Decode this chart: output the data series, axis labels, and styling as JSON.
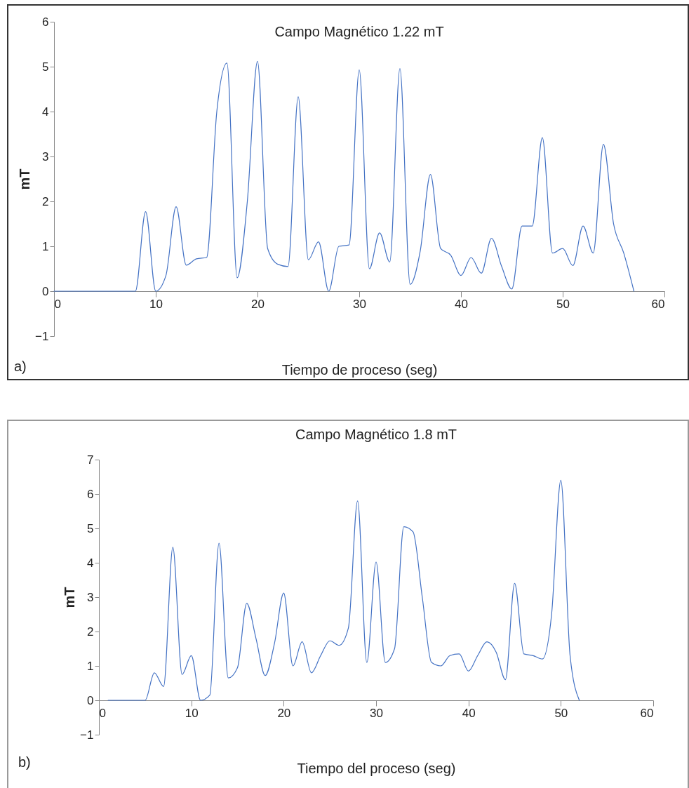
{
  "chart_data": [
    {
      "type": "line",
      "title": "Campo Magnético 1.22 mT",
      "xlabel": "Tiempo de proceso (seg)",
      "ylabel": "mT",
      "xlim": [
        0,
        60
      ],
      "xticks": [
        0,
        10,
        20,
        30,
        40,
        50,
        60
      ],
      "ylim": [
        -1,
        6
      ],
      "yticks": [
        -1,
        0,
        1,
        2,
        3,
        4,
        5,
        6
      ],
      "annotations": [
        "a)"
      ],
      "x": [
        0,
        1,
        2,
        3,
        4,
        5,
        6,
        7,
        8,
        9,
        10,
        11,
        12,
        13,
        14,
        15,
        16,
        17,
        18,
        19,
        20,
        21,
        22,
        23,
        24,
        25,
        26,
        27,
        28,
        29,
        30,
        31,
        32,
        33,
        34,
        35,
        36,
        37,
        38,
        39,
        40,
        41,
        42,
        43,
        44,
        45,
        46,
        47,
        48,
        49,
        50,
        51,
        52,
        53,
        54,
        55,
        56,
        57
      ],
      "series": [
        {
          "color": "#4472c4",
          "values": [
            0,
            0,
            0,
            0,
            0,
            0,
            0,
            0,
            0,
            1.77,
            0,
            0.35,
            1.88,
            0.58,
            0.72,
            0.75,
            4.0,
            5.08,
            0.3,
            2.0,
            5.12,
            0.95,
            0.6,
            0.55,
            4.33,
            0.7,
            1.1,
            0,
            1.0,
            1.03,
            4.93,
            0.5,
            1.3,
            0.65,
            4.96,
            0.15,
            0.9,
            2.6,
            0.95,
            0.8,
            0.35,
            0.75,
            0.4,
            1.18,
            0.55,
            0.05,
            1.45,
            1.45,
            3.42,
            0.85,
            0.95,
            0.57,
            1.45,
            0.85,
            3.27,
            1.5,
            0.85,
            0
          ]
        }
      ]
    },
    {
      "type": "line",
      "title": "Campo Magnético 1.8 mT",
      "xlabel": "Tiempo del proceso (seg)",
      "ylabel": "mT",
      "xlim": [
        0,
        60
      ],
      "xticks": [
        0,
        10,
        20,
        30,
        40,
        50,
        60
      ],
      "ylim": [
        -1,
        7
      ],
      "yticks": [
        -1,
        0,
        1,
        2,
        3,
        4,
        5,
        6,
        7
      ],
      "annotations": [
        "b)"
      ],
      "x": [
        1,
        2,
        3,
        4,
        5,
        6,
        7,
        8,
        9,
        10,
        11,
        12,
        13,
        14,
        15,
        16,
        17,
        18,
        19,
        20,
        21,
        22,
        23,
        24,
        25,
        26,
        27,
        28,
        29,
        30,
        31,
        32,
        33,
        34,
        35,
        36,
        37,
        38,
        39,
        40,
        41,
        42,
        43,
        44,
        45,
        46,
        47,
        48,
        49,
        50,
        51,
        52
      ],
      "series": [
        {
          "color": "#4472c4",
          "values": [
            0,
            0,
            0,
            0,
            0,
            0.8,
            0.4,
            4.45,
            0.75,
            1.3,
            0,
            0.15,
            4.57,
            0.65,
            0.95,
            2.82,
            1.8,
            0.72,
            1.65,
            3.12,
            1.0,
            1.7,
            0.8,
            1.3,
            1.73,
            1.6,
            2.1,
            5.8,
            1.1,
            4.02,
            1.1,
            1.5,
            5.05,
            4.9,
            3.0,
            1.1,
            1.0,
            1.3,
            1.35,
            0.85,
            1.3,
            1.7,
            1.4,
            0.6,
            3.4,
            1.35,
            1.3,
            1.2,
            2.5,
            6.4,
            1.3,
            0
          ]
        }
      ]
    }
  ]
}
